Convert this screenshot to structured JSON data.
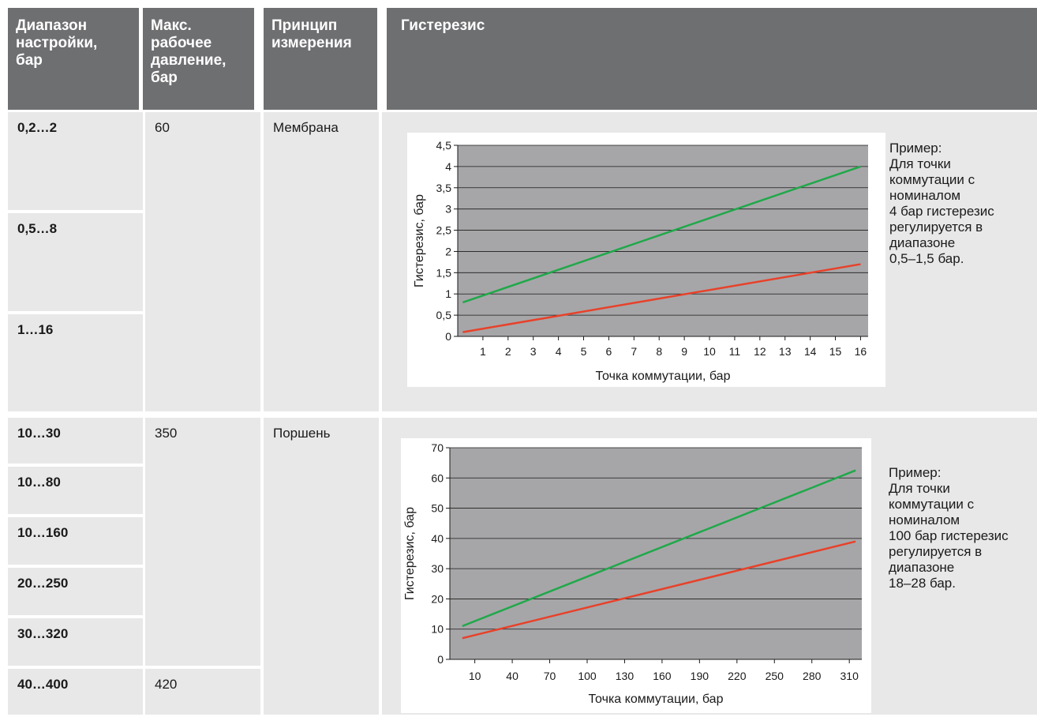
{
  "table": {
    "headers": [
      "Диапазон настройки, бар",
      "Макс. рабочее давление, бар",
      "Принцип измерения",
      "Гистерезис"
    ],
    "header_lines": [
      [
        "Диапазон",
        "настройки,",
        "бар"
      ],
      [
        "Макс.",
        "рабочее",
        "давление,",
        "бар"
      ],
      [
        "Принцип",
        "измерения"
      ],
      [
        "Гистерезис"
      ]
    ],
    "ranges": [
      "0,2…2",
      "0,5…8",
      "1…16",
      "10…30",
      "10…80",
      "10…160",
      "20…250",
      "30…320",
      "40…400"
    ],
    "max_pressure": [
      "60",
      "350",
      "420"
    ],
    "principle": [
      "Мембрана",
      "Поршень"
    ]
  },
  "notes": [
    {
      "lines": [
        "Пример:",
        "Для точки",
        "коммутации с",
        "номиналом",
        "4 бар гистерезис",
        "регулируется в",
        "диапазоне",
        "0,5–1,5 бар."
      ]
    },
    {
      "lines": [
        "Пример:",
        "Для точки",
        "коммутации с",
        "номиналом",
        "100 бар гистерезис",
        "регулируется в",
        "диапазоне",
        "18–28 бар."
      ]
    }
  ],
  "colors": {
    "header_bg": "#6e6f71",
    "cell_bg": "#e8e8e9",
    "plot_bg": "#a6a6a8",
    "upper_line": "#20a84a",
    "lower_line": "#e8412a"
  },
  "chart_data": [
    {
      "type": "line",
      "xlabel": "Точка коммутации, бар",
      "ylabel": "Гистерезис, бар",
      "x_ticks": [
        "1",
        "2",
        "3",
        "4",
        "5",
        "6",
        "7",
        "8",
        "9",
        "10",
        "11",
        "12",
        "13",
        "14",
        "15",
        "16"
      ],
      "y_ticks": [
        "0",
        "0,5",
        "1",
        "1,5",
        "2",
        "2,5",
        "3",
        "3,5",
        "4",
        "4,5"
      ],
      "xlim": [
        0,
        16.3
      ],
      "ylim": [
        0,
        4.5
      ],
      "grid": true,
      "series": [
        {
          "x": [
            0.2,
            16
          ],
          "y": [
            0.8,
            4.0
          ],
          "color": "#20a84a"
        },
        {
          "x": [
            0.2,
            16
          ],
          "y": [
            0.1,
            1.7
          ],
          "color": "#e8412a"
        }
      ]
    },
    {
      "type": "line",
      "xlabel": "Точка коммутации, бар",
      "ylabel": "Гистерезис, бар",
      "x_ticks": [
        "10",
        "40",
        "70",
        "100",
        "130",
        "160",
        "190",
        "220",
        "250",
        "280",
        "310"
      ],
      "y_ticks": [
        "0",
        "10",
        "20",
        "30",
        "40",
        "50",
        "60",
        "70"
      ],
      "xlim": [
        -10,
        320
      ],
      "ylim": [
        0,
        70
      ],
      "grid": true,
      "series": [
        {
          "x": [
            0,
            315
          ],
          "y": [
            11,
            62.5
          ],
          "color": "#20a84a"
        },
        {
          "x": [
            0,
            315
          ],
          "y": [
            7,
            39
          ],
          "color": "#e8412a"
        }
      ]
    }
  ]
}
